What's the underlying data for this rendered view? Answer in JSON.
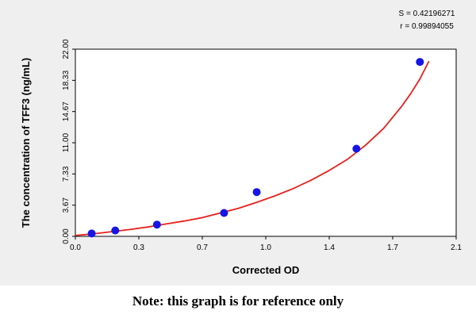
{
  "chart_data": {
    "type": "scatter",
    "title": "",
    "xlabel": "Corrected OD",
    "ylabel": "The concentration of TFF3 (ng/mL)",
    "xlim": [
      0.0,
      2.1
    ],
    "ylim": [
      0.0,
      22.0
    ],
    "x_ticks": [
      "0.0",
      "0.3",
      "0.7",
      "1.0",
      "1.4",
      "1.7",
      "2.1"
    ],
    "y_ticks": [
      "0.00",
      "3.67",
      "7.33",
      "11.00",
      "14.67",
      "18.33",
      "22.00"
    ],
    "points": [
      {
        "x": 0.09,
        "y": 0.34
      },
      {
        "x": 0.22,
        "y": 0.69
      },
      {
        "x": 0.45,
        "y": 1.38
      },
      {
        "x": 0.82,
        "y": 2.75
      },
      {
        "x": 1.0,
        "y": 5.2
      },
      {
        "x": 1.55,
        "y": 10.3
      },
      {
        "x": 1.9,
        "y": 20.5
      }
    ],
    "fit_curve": {
      "x": [
        0.0,
        0.1,
        0.2,
        0.3,
        0.4,
        0.5,
        0.6,
        0.7,
        0.8,
        0.9,
        1.0,
        1.1,
        1.2,
        1.3,
        1.4,
        1.5,
        1.6,
        1.7,
        1.8,
        1.85,
        1.9,
        1.95
      ],
      "y": [
        0.1,
        0.3,
        0.55,
        0.8,
        1.1,
        1.45,
        1.8,
        2.2,
        2.75,
        3.3,
        4.0,
        4.75,
        5.6,
        6.6,
        7.75,
        9.05,
        10.7,
        12.7,
        15.3,
        16.8,
        18.5,
        20.6
      ]
    },
    "stats": {
      "s_text": "S = 0.42196271",
      "r_text": "r = 0.99894055"
    },
    "grid": false,
    "legend": "none",
    "point_color": "#1515e6",
    "curve_color": "#e8201b"
  },
  "note": "Note: this graph is for reference only"
}
